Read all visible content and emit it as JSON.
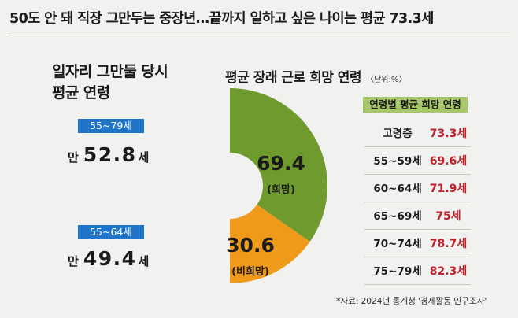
{
  "headline": "50도 안 돼 직장 그만두는 중장년…끝까지 일하고 싶은 나이는 평균 73.3세",
  "left_panel": {
    "title_line1": "일자리 그만둘 당시",
    "title_line2": "평균 연령",
    "groups": [
      {
        "badge": "55~79세",
        "prefix": "만",
        "value": "52.8",
        "unit": "세"
      },
      {
        "badge": "55~64세",
        "prefix": "만",
        "value": "49.4",
        "unit": "세"
      }
    ]
  },
  "chart_data": {
    "type": "pie",
    "title": "평균 장래 근로 희망 연령",
    "unit_note": "〈단위:%〉",
    "slices": [
      {
        "value": 69.4,
        "value_label": "69.4",
        "label": "(희망)",
        "color": "#6e9a2e",
        "text_color": "#1a1a1a"
      },
      {
        "value": 30.6,
        "value_label": "30.6",
        "label": "(비희망)",
        "color": "#f09a1c",
        "text_color": "#1a1a1a"
      }
    ]
  },
  "table": {
    "title": "연령별 평균 희망 연령",
    "rows": [
      {
        "group": "고령층",
        "value": "73.3세"
      },
      {
        "group": "55~59세",
        "value": "69.6세"
      },
      {
        "group": "60~64세",
        "value": "71.9세"
      },
      {
        "group": "65~69세",
        "value": "75세"
      },
      {
        "group": "70~74세",
        "value": "78.7세"
      },
      {
        "group": "75~79세",
        "value": "82.3세"
      }
    ]
  },
  "source": "*자료: 2024년 통계청 '경제활동 인구조사'"
}
